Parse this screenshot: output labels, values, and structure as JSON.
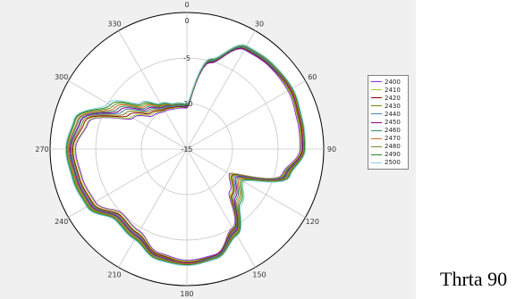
{
  "caption": "Thrta 90",
  "chart_data": {
    "type": "polar-line",
    "angle_ticks": [
      "0",
      "30",
      "60",
      "90",
      "120",
      "150",
      "180",
      "210",
      "240",
      "270",
      "300",
      "330"
    ],
    "radial_ticks": [
      "0",
      "-5",
      "-10",
      "-15"
    ],
    "rlim": [
      -15,
      0
    ],
    "direction": "clockwise",
    "zero_location": "top",
    "legend_position": "right",
    "theta": [
      0,
      15,
      30,
      45,
      60,
      75,
      90,
      105,
      120,
      135,
      150,
      165,
      180,
      195,
      210,
      225,
      240,
      255,
      270,
      285,
      300,
      315,
      330,
      345
    ],
    "series": [
      {
        "name": "2400",
        "color": "#8a2be2",
        "values": [
          -10.5,
          -5.2,
          -2.4,
          -2.2,
          -2.2,
          -2.5,
          -2.6,
          -4.2,
          -9.6,
          -8.4,
          -5.0,
          -3.0,
          -2.8,
          -3.2,
          -4.6,
          -5.0,
          -3.4,
          -3.1,
          -2.8,
          -3.8,
          -8.2,
          -9.8,
          -10.2,
          -10.4
        ]
      },
      {
        "name": "2410",
        "color": "#9acd32",
        "values": [
          -10.4,
          -5.1,
          -2.3,
          -2.1,
          -2.1,
          -2.4,
          -2.5,
          -4.1,
          -9.5,
          -8.2,
          -4.9,
          -2.9,
          -2.7,
          -3.1,
          -4.5,
          -4.9,
          -3.3,
          -3.0,
          -2.7,
          -3.7,
          -8.0,
          -9.6,
          -10.1,
          -10.3
        ]
      },
      {
        "name": "2420",
        "color": "#8b0000",
        "values": [
          -10.4,
          -5.1,
          -2.3,
          -2.1,
          -2.0,
          -2.3,
          -2.4,
          -4.0,
          -9.3,
          -8.0,
          -4.8,
          -2.9,
          -2.6,
          -3.0,
          -4.3,
          -4.7,
          -3.1,
          -2.8,
          -2.5,
          -3.4,
          -7.6,
          -9.4,
          -10.0,
          -10.2
        ]
      },
      {
        "name": "2430",
        "color": "#808000",
        "values": [
          -10.3,
          -5.0,
          -2.2,
          -2.0,
          -2.0,
          -2.3,
          -2.4,
          -4.0,
          -9.2,
          -7.9,
          -4.7,
          -2.8,
          -2.6,
          -2.9,
          -4.2,
          -4.6,
          -3.0,
          -2.7,
          -2.4,
          -3.2,
          -7.2,
          -9.2,
          -9.9,
          -10.1
        ]
      },
      {
        "name": "2440",
        "color": "#4682b4",
        "values": [
          -10.3,
          -5.0,
          -2.2,
          -2.0,
          -1.9,
          -2.2,
          -2.3,
          -3.9,
          -9.0,
          -7.7,
          -4.6,
          -2.8,
          -2.5,
          -2.8,
          -4.1,
          -4.5,
          -2.9,
          -2.6,
          -2.3,
          -3.0,
          -6.8,
          -9.0,
          -9.8,
          -10.1
        ]
      },
      {
        "name": "2450",
        "color": "#8b008b",
        "values": [
          -10.2,
          -4.9,
          -2.1,
          -1.9,
          -1.9,
          -2.2,
          -2.3,
          -3.8,
          -8.8,
          -7.5,
          -4.5,
          -2.7,
          -2.5,
          -2.8,
          -4.0,
          -4.4,
          -2.8,
          -2.5,
          -2.2,
          -2.9,
          -6.5,
          -8.8,
          -9.7,
          -10.0
        ]
      },
      {
        "name": "2460",
        "color": "#2e8b57",
        "values": [
          -10.2,
          -4.9,
          -2.1,
          -1.9,
          -1.8,
          -2.1,
          -2.2,
          -3.7,
          -8.6,
          -7.3,
          -4.4,
          -2.7,
          -2.4,
          -2.7,
          -3.9,
          -4.3,
          -2.7,
          -2.4,
          -2.1,
          -2.7,
          -6.2,
          -8.6,
          -9.6,
          -10.0
        ]
      },
      {
        "name": "2470",
        "color": "#d2691e",
        "values": [
          -10.1,
          -4.8,
          -2.0,
          -1.8,
          -1.8,
          -2.1,
          -2.2,
          -3.6,
          -8.4,
          -7.1,
          -4.3,
          -2.6,
          -2.4,
          -2.6,
          -3.8,
          -4.2,
          -2.6,
          -2.3,
          -2.0,
          -2.6,
          -5.9,
          -8.4,
          -9.5,
          -9.9
        ]
      },
      {
        "name": "2480",
        "color": "#6b8e23",
        "values": [
          -10.1,
          -4.8,
          -2.0,
          -1.8,
          -1.7,
          -2.0,
          -2.1,
          -3.5,
          -8.2,
          -6.9,
          -4.2,
          -2.6,
          -2.3,
          -2.5,
          -3.7,
          -4.1,
          -2.5,
          -2.2,
          -1.9,
          -2.4,
          -5.6,
          -8.2,
          -9.4,
          -9.9
        ]
      },
      {
        "name": "2490",
        "color": "#228b22",
        "values": [
          -10.0,
          -4.7,
          -1.9,
          -1.7,
          -1.7,
          -2.0,
          -2.1,
          -3.4,
          -8.0,
          -6.7,
          -4.1,
          -2.5,
          -2.3,
          -2.5,
          -3.6,
          -4.0,
          -2.4,
          -2.1,
          -1.8,
          -2.3,
          -5.3,
          -8.0,
          -9.3,
          -9.8
        ]
      },
      {
        "name": "2500",
        "color": "#87ceeb",
        "values": [
          -10.0,
          -4.7,
          -1.9,
          -1.7,
          -1.6,
          -1.9,
          -2.0,
          -3.3,
          -7.8,
          -6.5,
          -4.0,
          -2.5,
          -2.2,
          -2.4,
          -3.5,
          -3.9,
          -2.3,
          -2.0,
          -1.7,
          -2.2,
          -5.0,
          -7.8,
          -9.2,
          -9.8
        ]
      }
    ]
  }
}
